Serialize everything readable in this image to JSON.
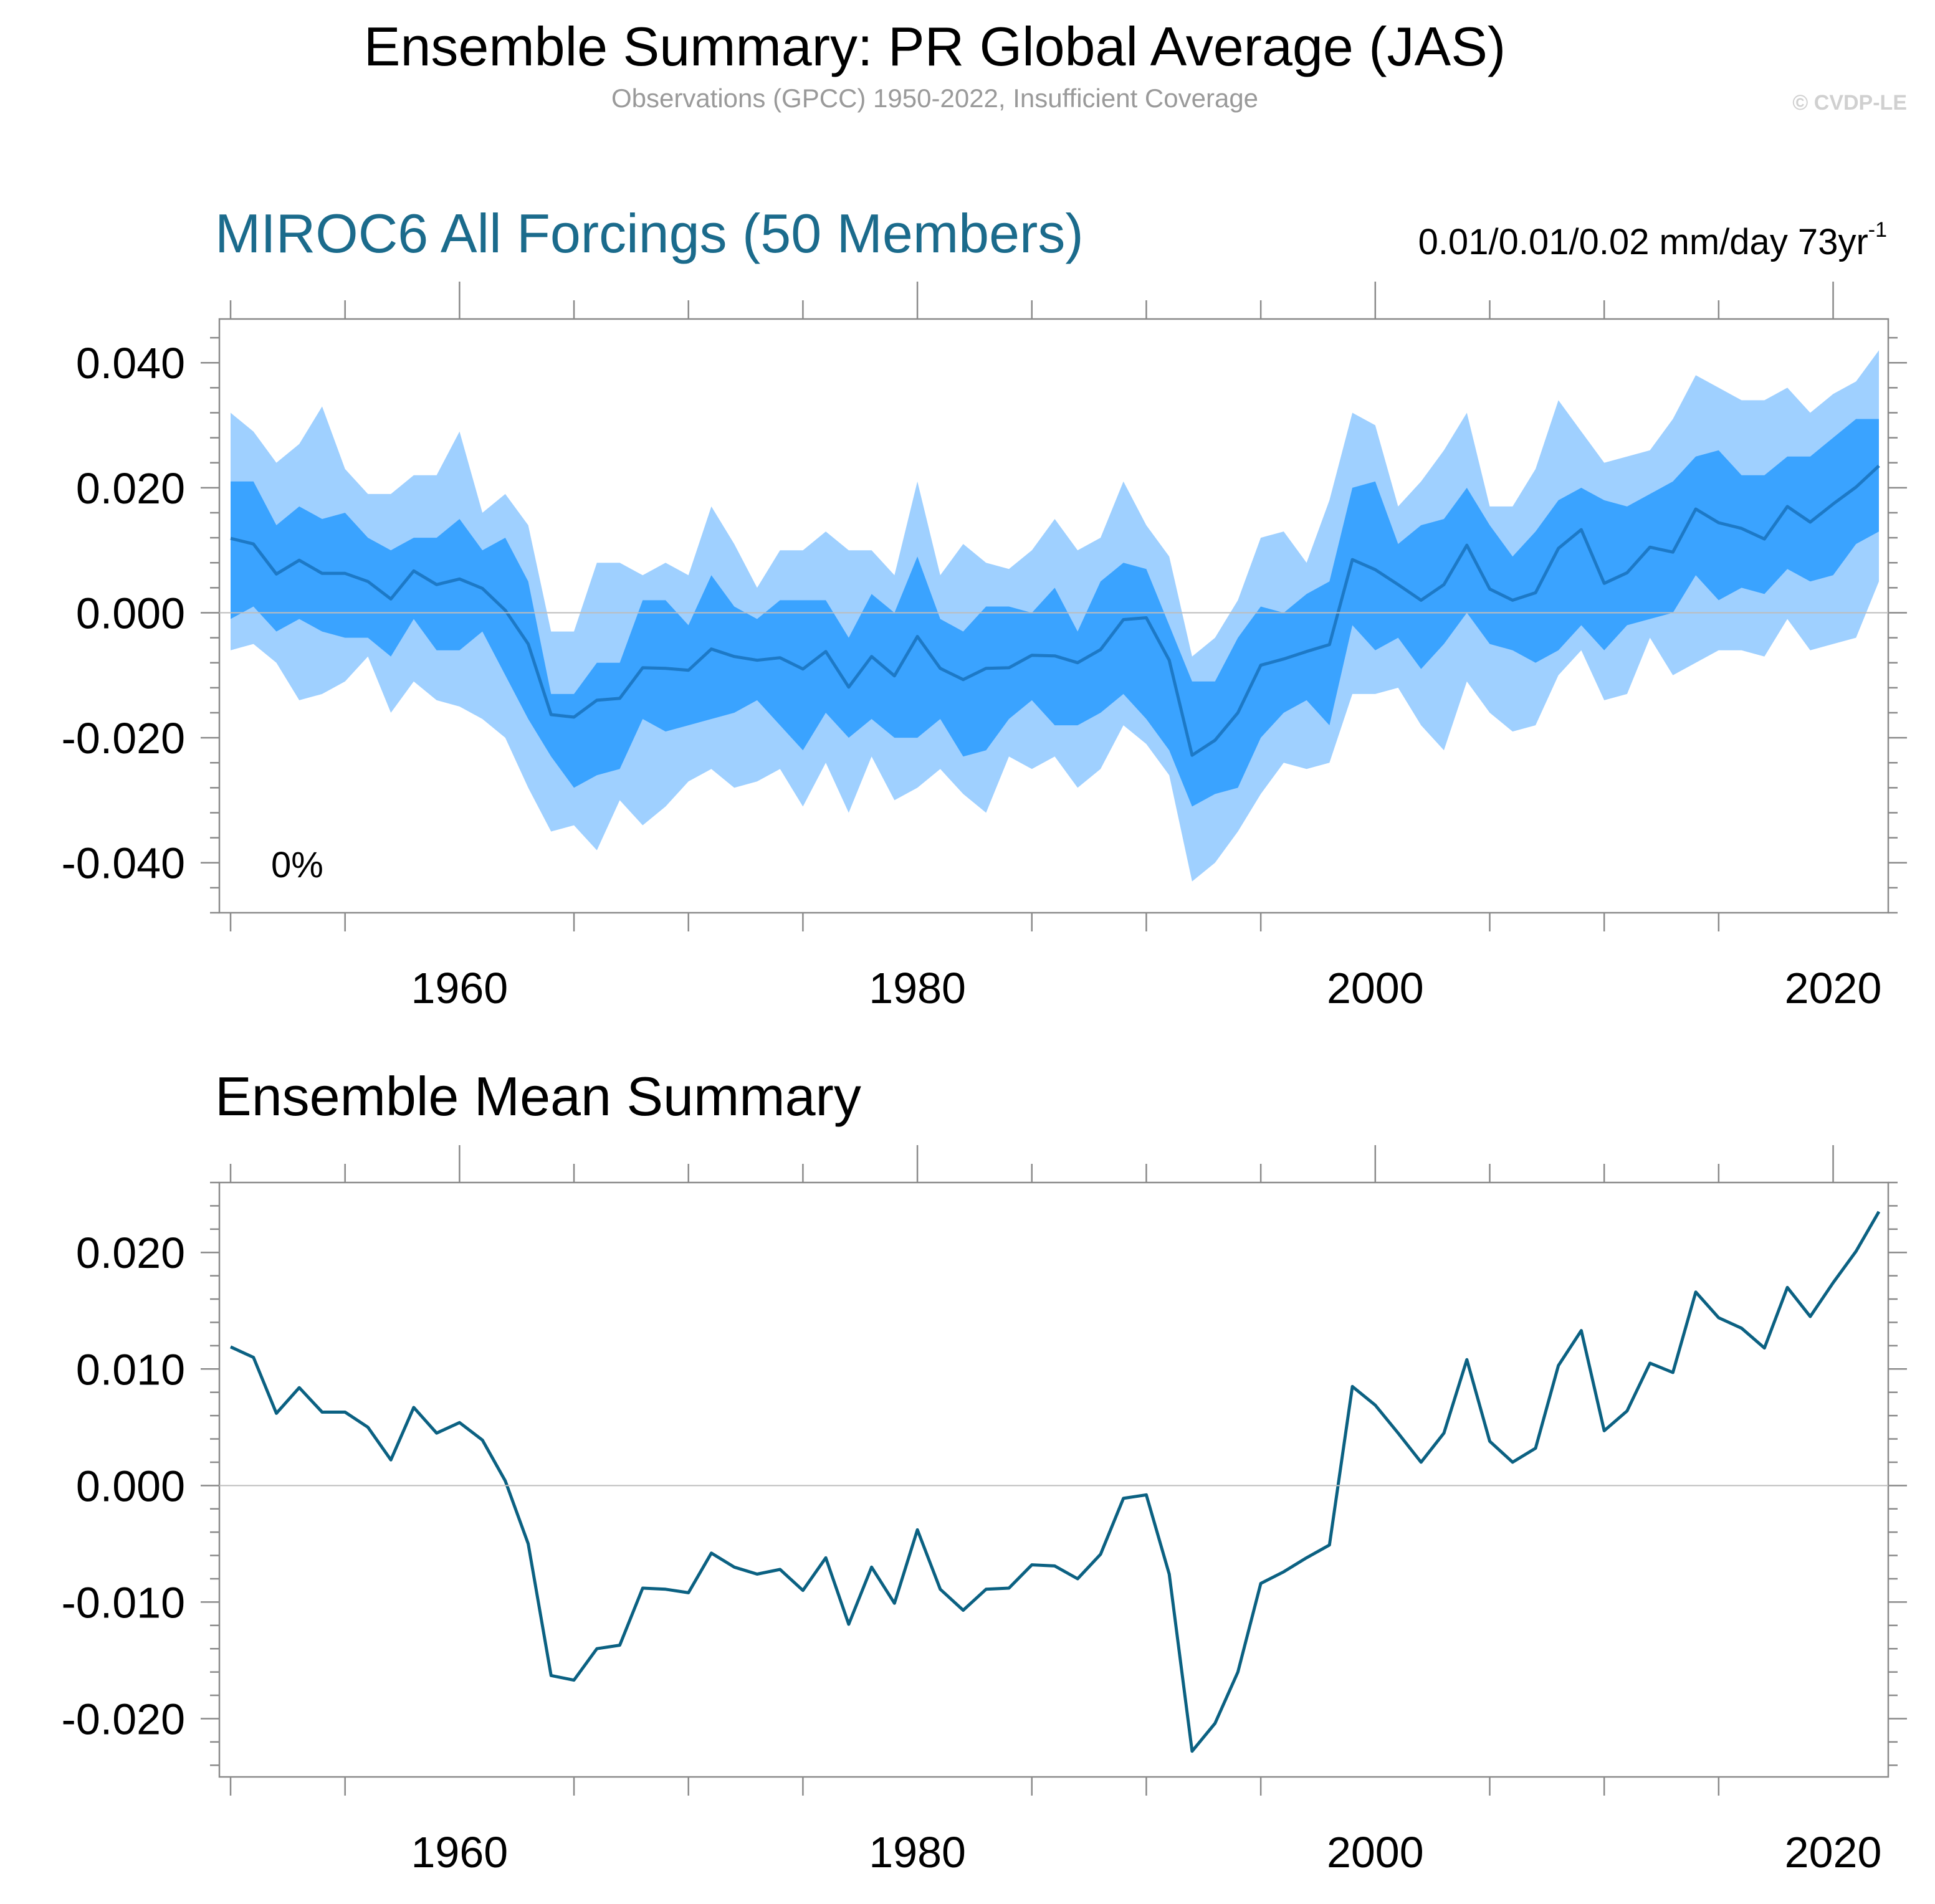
{
  "figure": {
    "title": "Ensemble Summary: PR Global Average (JAS)",
    "subtitle": "Observations (GPCC) 1950-2022, Insufficient Coverage",
    "copyright": "© CVDP-LE"
  },
  "chart_data": [
    {
      "type": "area",
      "title": "MIROC6 All Forcings (50 Members)",
      "trend_label": "0.01/0.01/0.02 mm/day 73yr",
      "trend_superscript": "-1",
      "annotation": "0%",
      "xlim": [
        1950,
        2022
      ],
      "ylim": [
        -0.048,
        0.047
      ],
      "y_ticks": [
        "0.040",
        "0.020",
        "0.000",
        "-0.020",
        "-0.040"
      ],
      "x_ticks": [
        "1960",
        "1980",
        "2000",
        "2020"
      ],
      "colors": {
        "outer_band": "#9fd0ff",
        "inner_band": "#3aa3ff",
        "mean_line": "#1d79c6"
      },
      "x": [
        1950,
        1951,
        1952,
        1953,
        1954,
        1955,
        1956,
        1957,
        1958,
        1959,
        1960,
        1961,
        1962,
        1963,
        1964,
        1965,
        1966,
        1967,
        1968,
        1969,
        1970,
        1971,
        1972,
        1973,
        1974,
        1975,
        1976,
        1977,
        1978,
        1979,
        1980,
        1981,
        1982,
        1983,
        1984,
        1985,
        1986,
        1987,
        1988,
        1989,
        1990,
        1991,
        1992,
        1993,
        1994,
        1995,
        1996,
        1997,
        1998,
        1999,
        2000,
        2001,
        2002,
        2003,
        2004,
        2005,
        2006,
        2007,
        2008,
        2009,
        2010,
        2011,
        2012,
        2013,
        2014,
        2015,
        2016,
        2017,
        2018,
        2019,
        2020,
        2021,
        2022
      ],
      "series": [
        {
          "name": "max",
          "values": [
            0.032,
            0.029,
            0.024,
            0.027,
            0.033,
            0.023,
            0.019,
            0.019,
            0.022,
            0.022,
            0.029,
            0.016,
            0.019,
            0.014,
            -0.003,
            -0.003,
            0.008,
            0.008,
            0.006,
            0.008,
            0.006,
            0.017,
            0.011,
            0.004,
            0.01,
            0.01,
            0.013,
            0.01,
            0.01,
            0.006,
            0.021,
            0.006,
            0.011,
            0.008,
            0.007,
            0.01,
            0.015,
            0.01,
            0.012,
            0.021,
            0.014,
            0.009,
            -0.007,
            -0.004,
            0.002,
            0.012,
            0.013,
            0.008,
            0.018,
            0.032,
            0.03,
            0.017,
            0.021,
            0.026,
            0.032,
            0.017,
            0.017,
            0.023,
            0.034,
            0.029,
            0.024,
            0.025,
            0.026,
            0.031,
            0.038,
            0.036,
            0.034,
            0.034,
            0.036,
            0.032,
            0.035,
            0.037,
            0.042
          ]
        },
        {
          "name": "upper",
          "values": [
            0.021,
            0.021,
            0.014,
            0.017,
            0.015,
            0.016,
            0.012,
            0.01,
            0.012,
            0.012,
            0.015,
            0.01,
            0.012,
            0.005,
            -0.013,
            -0.013,
            -0.008,
            -0.008,
            0.002,
            0.002,
            -0.002,
            0.006,
            0.001,
            -0.001,
            0.002,
            0.002,
            0.002,
            -0.004,
            0.003,
            0.0,
            0.009,
            -0.001,
            -0.003,
            0.001,
            0.001,
            0.0,
            0.004,
            -0.003,
            0.005,
            0.008,
            0.007,
            -0.002,
            -0.011,
            -0.011,
            -0.004,
            0.001,
            0.0,
            0.003,
            0.005,
            0.02,
            0.021,
            0.011,
            0.014,
            0.015,
            0.02,
            0.014,
            0.009,
            0.013,
            0.018,
            0.02,
            0.018,
            0.017,
            0.019,
            0.021,
            0.025,
            0.026,
            0.022,
            0.022,
            0.025,
            0.025,
            0.028,
            0.031,
            0.031
          ]
        },
        {
          "name": "mean",
          "values": [
            0.0119,
            0.011,
            0.0062,
            0.0084,
            0.0063,
            0.0063,
            0.005,
            0.0022,
            0.0067,
            0.0045,
            0.0054,
            0.0039,
            0.0004,
            -0.005,
            -0.0163,
            -0.0167,
            -0.014,
            -0.0137,
            -0.0088,
            -0.0089,
            -0.0092,
            -0.0058,
            -0.007,
            -0.0076,
            -0.0072,
            -0.009,
            -0.0062,
            -0.0119,
            -0.007,
            -0.0101,
            -0.0038,
            -0.0089,
            -0.0107,
            -0.0089,
            -0.0088,
            -0.0068,
            -0.0069,
            -0.008,
            -0.0059,
            -0.0011,
            -0.0008,
            -0.0076,
            -0.0228,
            -0.0204,
            -0.016,
            -0.0084,
            -0.0074,
            -0.0062,
            -0.0051,
            0.0085,
            0.0069,
            0.0045,
            0.002,
            0.0045,
            0.0108,
            0.0038,
            0.002,
            0.0032,
            0.0103,
            0.0133,
            0.0047,
            0.0064,
            0.0105,
            0.0097,
            0.0166,
            0.0144,
            0.0135,
            0.0118,
            0.017,
            0.0145,
            0.0174,
            0.0201,
            0.0235
          ]
        },
        {
          "name": "lower",
          "values": [
            -0.001,
            0.001,
            -0.003,
            -0.001,
            -0.003,
            -0.004,
            -0.004,
            -0.007,
            -0.001,
            -0.006,
            -0.006,
            -0.003,
            -0.01,
            -0.017,
            -0.023,
            -0.028,
            -0.026,
            -0.025,
            -0.017,
            -0.019,
            -0.018,
            -0.017,
            -0.016,
            -0.014,
            -0.018,
            -0.022,
            -0.016,
            -0.02,
            -0.017,
            -0.02,
            -0.02,
            -0.017,
            -0.023,
            -0.022,
            -0.017,
            -0.014,
            -0.018,
            -0.018,
            -0.016,
            -0.013,
            -0.017,
            -0.022,
            -0.031,
            -0.029,
            -0.028,
            -0.02,
            -0.016,
            -0.014,
            -0.018,
            -0.002,
            -0.006,
            -0.004,
            -0.009,
            -0.005,
            0.0,
            -0.005,
            -0.006,
            -0.008,
            -0.006,
            -0.002,
            -0.006,
            -0.002,
            -0.001,
            0.0,
            0.006,
            0.002,
            0.004,
            0.003,
            0.007,
            0.005,
            0.006,
            0.011,
            0.013
          ]
        },
        {
          "name": "min",
          "values": [
            -0.006,
            -0.005,
            -0.008,
            -0.014,
            -0.013,
            -0.011,
            -0.007,
            -0.016,
            -0.011,
            -0.014,
            -0.015,
            -0.017,
            -0.02,
            -0.028,
            -0.035,
            -0.034,
            -0.038,
            -0.03,
            -0.034,
            -0.031,
            -0.027,
            -0.025,
            -0.028,
            -0.027,
            -0.025,
            -0.031,
            -0.024,
            -0.032,
            -0.023,
            -0.03,
            -0.028,
            -0.025,
            -0.029,
            -0.032,
            -0.023,
            -0.025,
            -0.023,
            -0.028,
            -0.025,
            -0.018,
            -0.021,
            -0.026,
            -0.043,
            -0.04,
            -0.035,
            -0.029,
            -0.024,
            -0.025,
            -0.024,
            -0.013,
            -0.013,
            -0.012,
            -0.018,
            -0.022,
            -0.011,
            -0.016,
            -0.019,
            -0.018,
            -0.01,
            -0.006,
            -0.014,
            -0.013,
            -0.004,
            -0.01,
            -0.008,
            -0.006,
            -0.006,
            -0.007,
            -0.001,
            -0.006,
            -0.005,
            -0.004,
            0.005
          ]
        }
      ]
    },
    {
      "type": "line",
      "title": "Ensemble Mean Summary",
      "xlim": [
        1950,
        2022
      ],
      "ylim": [
        -0.025,
        0.026
      ],
      "y_ticks": [
        "0.020",
        "0.010",
        "0.000",
        "-0.010",
        "-0.020"
      ],
      "x_ticks": [
        "1960",
        "1980",
        "2000",
        "2020"
      ],
      "colors": {
        "line": "#0b6182"
      },
      "x": [
        1950,
        1951,
        1952,
        1953,
        1954,
        1955,
        1956,
        1957,
        1958,
        1959,
        1960,
        1961,
        1962,
        1963,
        1964,
        1965,
        1966,
        1967,
        1968,
        1969,
        1970,
        1971,
        1972,
        1973,
        1974,
        1975,
        1976,
        1977,
        1978,
        1979,
        1980,
        1981,
        1982,
        1983,
        1984,
        1985,
        1986,
        1987,
        1988,
        1989,
        1990,
        1991,
        1992,
        1993,
        1994,
        1995,
        1996,
        1997,
        1998,
        1999,
        2000,
        2001,
        2002,
        2003,
        2004,
        2005,
        2006,
        2007,
        2008,
        2009,
        2010,
        2011,
        2012,
        2013,
        2014,
        2015,
        2016,
        2017,
        2018,
        2019,
        2020,
        2021,
        2022
      ],
      "series": [
        {
          "name": "Ensemble Mean",
          "values": [
            0.0119,
            0.011,
            0.0062,
            0.0084,
            0.0063,
            0.0063,
            0.005,
            0.0022,
            0.0067,
            0.0045,
            0.0054,
            0.0039,
            0.0004,
            -0.005,
            -0.0163,
            -0.0167,
            -0.014,
            -0.0137,
            -0.0088,
            -0.0089,
            -0.0092,
            -0.0058,
            -0.007,
            -0.0076,
            -0.0072,
            -0.009,
            -0.0062,
            -0.0119,
            -0.007,
            -0.0101,
            -0.0038,
            -0.0089,
            -0.0107,
            -0.0089,
            -0.0088,
            -0.0068,
            -0.0069,
            -0.008,
            -0.0059,
            -0.0011,
            -0.0008,
            -0.0076,
            -0.0228,
            -0.0204,
            -0.016,
            -0.0084,
            -0.0074,
            -0.0062,
            -0.0051,
            0.0085,
            0.0069,
            0.0045,
            0.002,
            0.0045,
            0.0108,
            0.0038,
            0.002,
            0.0032,
            0.0103,
            0.0133,
            0.0047,
            0.0064,
            0.0105,
            0.0097,
            0.0166,
            0.0144,
            0.0135,
            0.0118,
            0.017,
            0.0145,
            0.0174,
            0.0201,
            0.0235
          ]
        }
      ]
    }
  ]
}
